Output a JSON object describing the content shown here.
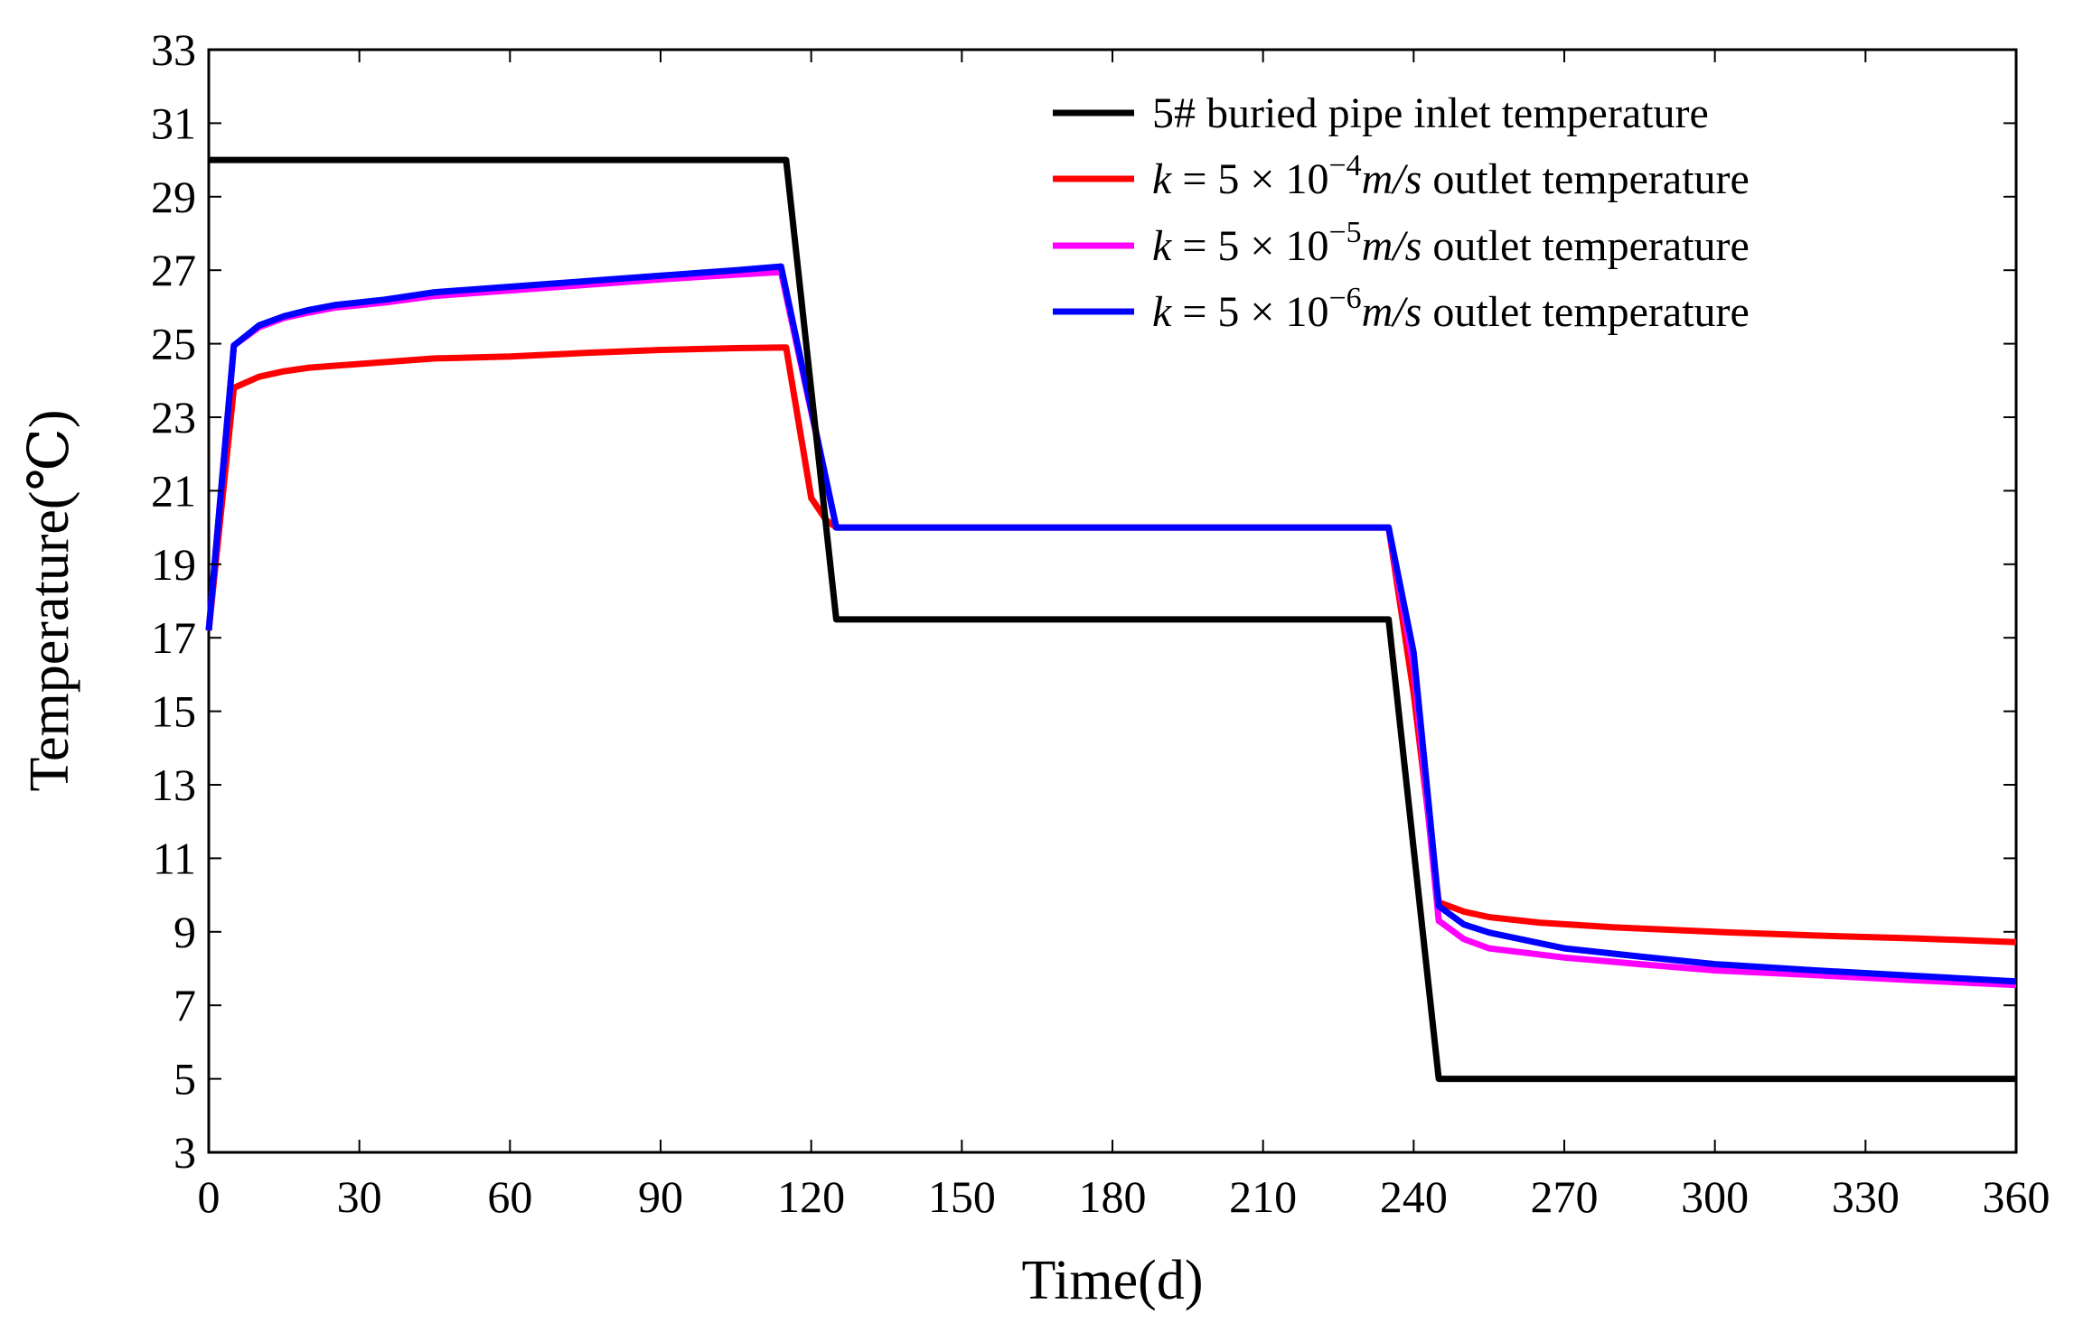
{
  "chart_data": {
    "type": "line",
    "title": "",
    "xlabel": "Time(d)",
    "ylabel": "Temperature(℃)",
    "xlim": [
      0,
      360
    ],
    "ylim": [
      3,
      33
    ],
    "xticks": [
      0,
      30,
      60,
      90,
      120,
      150,
      180,
      210,
      240,
      270,
      300,
      330,
      360
    ],
    "yticks": [
      3,
      5,
      7,
      9,
      11,
      13,
      15,
      17,
      19,
      21,
      23,
      25,
      27,
      29,
      31,
      33
    ],
    "grid": false,
    "legend_position": "top-right",
    "series": [
      {
        "name": "5# buried pipe inlet temperature",
        "color": "#000000",
        "legend": {
          "text": "5# buried pipe inlet temperature"
        },
        "points": [
          [
            0,
            30
          ],
          [
            115,
            30
          ],
          [
            125,
            17.5
          ],
          [
            235,
            17.5
          ],
          [
            245,
            5
          ],
          [
            360,
            5
          ]
        ]
      },
      {
        "name": "k = 5×10^-4 m/s outlet temperature",
        "color": "#ff0000",
        "legend": {
          "k": "k",
          "eq": " = 5 × 10",
          "exp": "−4",
          "unit": "m/s",
          "tail": " outlet temperature"
        },
        "points": [
          [
            0,
            17.2
          ],
          [
            5,
            23.8
          ],
          [
            10,
            24.1
          ],
          [
            15,
            24.25
          ],
          [
            20,
            24.35
          ],
          [
            30,
            24.45
          ],
          [
            45,
            24.6
          ],
          [
            60,
            24.65
          ],
          [
            75,
            24.75
          ],
          [
            90,
            24.83
          ],
          [
            105,
            24.88
          ],
          [
            115,
            24.9
          ],
          [
            120,
            20.8
          ],
          [
            123,
            20.2
          ],
          [
            125,
            20
          ],
          [
            235,
            20
          ],
          [
            240,
            15.5
          ],
          [
            245,
            9.8
          ],
          [
            250,
            9.55
          ],
          [
            255,
            9.4
          ],
          [
            265,
            9.25
          ],
          [
            280,
            9.12
          ],
          [
            300,
            9.0
          ],
          [
            320,
            8.9
          ],
          [
            340,
            8.82
          ],
          [
            360,
            8.72
          ]
        ]
      },
      {
        "name": "k = 5×10^-5 m/s outlet temperature",
        "color": "#ff00ff",
        "legend": {
          "k": "k",
          "eq": " = 5 × 10",
          "exp": "−5",
          "unit": "m/s",
          "tail": " outlet temperature"
        },
        "points": [
          [
            0,
            17.2
          ],
          [
            5,
            24.95
          ],
          [
            10,
            25.45
          ],
          [
            15,
            25.7
          ],
          [
            20,
            25.85
          ],
          [
            25,
            25.98
          ],
          [
            35,
            26.12
          ],
          [
            45,
            26.3
          ],
          [
            60,
            26.45
          ],
          [
            75,
            26.6
          ],
          [
            90,
            26.75
          ],
          [
            105,
            26.88
          ],
          [
            114,
            26.95
          ],
          [
            125,
            20
          ],
          [
            235,
            20
          ],
          [
            240,
            16.2
          ],
          [
            245,
            9.3
          ],
          [
            250,
            8.8
          ],
          [
            255,
            8.55
          ],
          [
            270,
            8.3
          ],
          [
            285,
            8.12
          ],
          [
            300,
            7.95
          ],
          [
            320,
            7.82
          ],
          [
            340,
            7.68
          ],
          [
            360,
            7.55
          ]
        ]
      },
      {
        "name": "k = 5×10^-6 m/s outlet temperature",
        "color": "#0000ff",
        "legend": {
          "k": "k",
          "eq": " = 5 × 10",
          "exp": "−6",
          "unit": "m/s",
          "tail": " outlet temperature"
        },
        "points": [
          [
            0,
            17.2
          ],
          [
            5,
            24.95
          ],
          [
            10,
            25.5
          ],
          [
            15,
            25.75
          ],
          [
            20,
            25.92
          ],
          [
            25,
            26.05
          ],
          [
            35,
            26.2
          ],
          [
            45,
            26.4
          ],
          [
            60,
            26.55
          ],
          [
            75,
            26.7
          ],
          [
            90,
            26.85
          ],
          [
            105,
            27.0
          ],
          [
            114,
            27.1
          ],
          [
            125,
            20
          ],
          [
            235,
            20
          ],
          [
            240,
            16.6
          ],
          [
            245,
            9.7
          ],
          [
            250,
            9.2
          ],
          [
            255,
            8.98
          ],
          [
            270,
            8.55
          ],
          [
            285,
            8.33
          ],
          [
            300,
            8.12
          ],
          [
            320,
            7.95
          ],
          [
            340,
            7.8
          ],
          [
            360,
            7.65
          ]
        ]
      }
    ]
  }
}
